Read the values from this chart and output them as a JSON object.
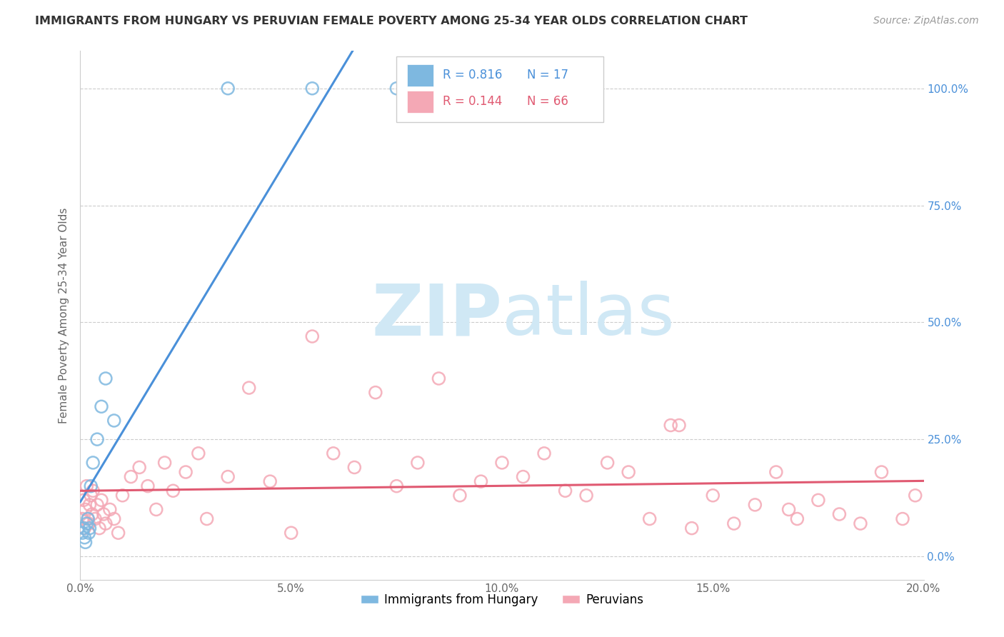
{
  "title": "IMMIGRANTS FROM HUNGARY VS PERUVIAN FEMALE POVERTY AMONG 25-34 YEAR OLDS CORRELATION CHART",
  "source_text": "Source: ZipAtlas.com",
  "ylabel": "Female Poverty Among 25-34 Year Olds",
  "xlabel_ticks": [
    "0.0%",
    "5.0%",
    "10.0%",
    "15.0%",
    "20.0%"
  ],
  "xlabel_vals": [
    0.0,
    5.0,
    10.0,
    15.0,
    20.0
  ],
  "ylabel_ticks": [
    "0.0%",
    "25.0%",
    "50.0%",
    "75.0%",
    "100.0%"
  ],
  "ylabel_vals": [
    0.0,
    25.0,
    50.0,
    75.0,
    100.0
  ],
  "xlim": [
    0.0,
    20.0
  ],
  "ylim": [
    -5.0,
    108.0
  ],
  "hungary_R": 0.816,
  "hungary_N": 17,
  "peru_R": 0.144,
  "peru_N": 66,
  "hungary_color": "#7eb8e0",
  "peru_color": "#f4a8b5",
  "hungary_line_color": "#4a90d9",
  "peru_line_color": "#e05a72",
  "watermark_zip": "ZIP",
  "watermark_atlas": "atlas",
  "watermark_color": "#d0e8f5",
  "hungary_x": [
    0.05,
    0.08,
    0.1,
    0.12,
    0.15,
    0.18,
    0.2,
    0.22,
    0.25,
    0.3,
    0.4,
    0.5,
    0.6,
    0.8,
    3.5,
    5.5,
    7.5
  ],
  "hungary_y": [
    5.0,
    6.0,
    4.0,
    3.0,
    7.0,
    8.0,
    5.0,
    6.0,
    15.0,
    20.0,
    25.0,
    32.0,
    38.0,
    29.0,
    100.0,
    100.0,
    100.0
  ],
  "peru_x": [
    0.05,
    0.08,
    0.1,
    0.12,
    0.15,
    0.18,
    0.2,
    0.22,
    0.25,
    0.28,
    0.3,
    0.35,
    0.4,
    0.45,
    0.5,
    0.55,
    0.6,
    0.7,
    0.8,
    0.9,
    1.0,
    1.2,
    1.4,
    1.6,
    1.8,
    2.0,
    2.2,
    2.5,
    2.8,
    3.0,
    3.5,
    4.0,
    4.5,
    5.0,
    5.5,
    6.0,
    6.5,
    7.0,
    7.5,
    8.0,
    8.5,
    9.0,
    9.5,
    10.0,
    10.5,
    11.0,
    11.5,
    12.0,
    12.5,
    13.0,
    13.5,
    14.0,
    14.5,
    15.0,
    15.5,
    16.0,
    16.5,
    17.0,
    17.5,
    18.0,
    18.5,
    19.0,
    19.5,
    19.8,
    14.2,
    16.8
  ],
  "peru_y": [
    8.0,
    12.0,
    6.0,
    10.0,
    15.0,
    8.0,
    7.0,
    11.0,
    13.0,
    9.0,
    14.0,
    8.0,
    11.0,
    6.0,
    12.0,
    9.0,
    7.0,
    10.0,
    8.0,
    5.0,
    13.0,
    17.0,
    19.0,
    15.0,
    10.0,
    20.0,
    14.0,
    18.0,
    22.0,
    8.0,
    17.0,
    36.0,
    16.0,
    5.0,
    47.0,
    22.0,
    19.0,
    35.0,
    15.0,
    20.0,
    38.0,
    13.0,
    16.0,
    20.0,
    17.0,
    22.0,
    14.0,
    13.0,
    20.0,
    18.0,
    8.0,
    28.0,
    6.0,
    13.0,
    7.0,
    11.0,
    18.0,
    8.0,
    12.0,
    9.0,
    7.0,
    18.0,
    8.0,
    13.0,
    28.0,
    10.0
  ]
}
